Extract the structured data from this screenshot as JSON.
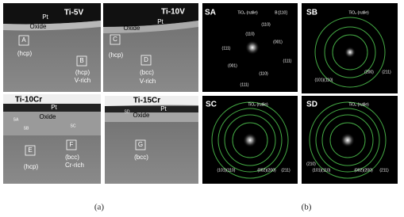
{
  "panel_a": {
    "caption": "(a)",
    "images": [
      {
        "title": "Ti-5V",
        "labels": [
          "Pt",
          "Oxide",
          "A",
          "(hcp)",
          "B",
          "(hcp)",
          "V-rich"
        ]
      },
      {
        "title": "Ti-10V",
        "labels": [
          "Pt",
          "Oxide",
          "C",
          "(hcp)",
          "D",
          "(bcc)",
          "V-rich"
        ]
      },
      {
        "title": "Ti-10Cr",
        "labels": [
          "Pt",
          "Oxide",
          "SA",
          "SB",
          "SC",
          "E",
          "(hcp)",
          "F",
          "(bcc)",
          "Cr-rich"
        ]
      },
      {
        "title": "Ti-15Cr",
        "labels": [
          "Pt",
          "SD",
          "Oxide",
          "G",
          "(bcc)"
        ]
      }
    ]
  },
  "panel_b": {
    "caption": "(b)",
    "patterns": [
      {
        "title": "SA",
        "phase": "TiO₂ (rutile)",
        "zone": "B:[110]",
        "spots": [
          "(110)",
          "(110)",
          "(001)",
          "(111)",
          "(111)",
          "(001)",
          "(111)",
          "(110)"
        ]
      },
      {
        "title": "SB",
        "phase": "TiO₂ (rutile)",
        "rings": [
          "(101)(110)",
          "(200)",
          "(211)"
        ]
      },
      {
        "title": "SC",
        "phase": "TiO₂ (rutile)",
        "rings": [
          "(101)(110)",
          "(002)(200)",
          "(211)"
        ]
      },
      {
        "title": "SD",
        "phase": "TiO₂ (rutile)",
        "rings": [
          "(210)",
          "(101)(110)",
          "(002)(200)",
          "(211)"
        ]
      }
    ]
  }
}
